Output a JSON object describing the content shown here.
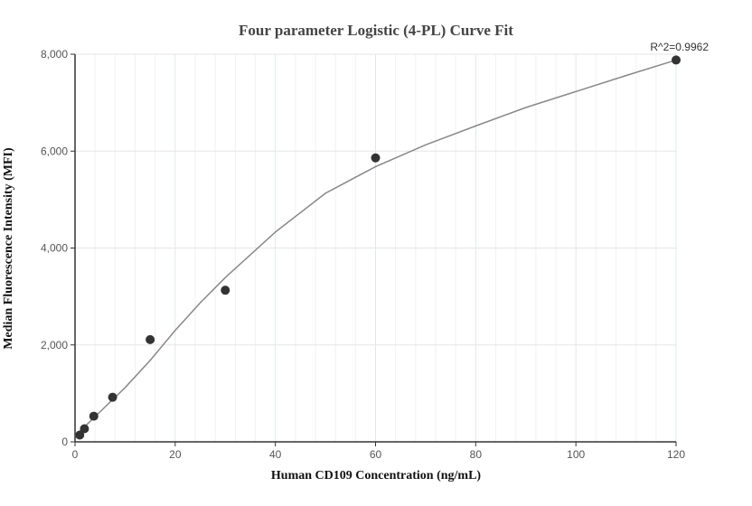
{
  "chart_data": {
    "type": "scatter",
    "title": "Four parameter Logistic (4-PL) Curve Fit",
    "xlabel": "Human CD109 Concentration (ng/mL)",
    "ylabel": "Median Fluorescence Intensity (MFI)",
    "xlim": [
      0,
      120
    ],
    "ylim": [
      0,
      8000
    ],
    "x_ticks": [
      0,
      20,
      40,
      60,
      80,
      100,
      120
    ],
    "y_ticks": [
      0,
      2000,
      4000,
      6000,
      8000
    ],
    "x_tick_labels": [
      "0",
      "20",
      "40",
      "60",
      "80",
      "100",
      "120"
    ],
    "y_tick_labels": [
      "0",
      "2,000",
      "4,000",
      "6,000",
      "8,000"
    ],
    "annotation": "R^2=0.9962",
    "grid": true,
    "colors": {
      "points": "#333333",
      "curve": "#888888",
      "grid": "#e6e6e6",
      "axis": "#333333"
    },
    "series": [
      {
        "type": "scatter",
        "x": [
          0.94,
          1.88,
          3.75,
          7.5,
          15,
          30,
          60,
          120
        ],
        "y": [
          140,
          270,
          530,
          920,
          2110,
          3130,
          5860,
          7880
        ]
      },
      {
        "type": "line",
        "x": [
          0,
          2,
          4,
          6,
          8,
          10,
          15,
          20,
          25,
          30,
          40,
          50,
          60,
          70,
          80,
          90,
          100,
          110,
          120
        ],
        "y": [
          120,
          320,
          520,
          720,
          920,
          1120,
          1680,
          2300,
          2870,
          3390,
          4330,
          5130,
          5680,
          6130,
          6520,
          6900,
          7230,
          7560,
          7880
        ]
      }
    ]
  }
}
